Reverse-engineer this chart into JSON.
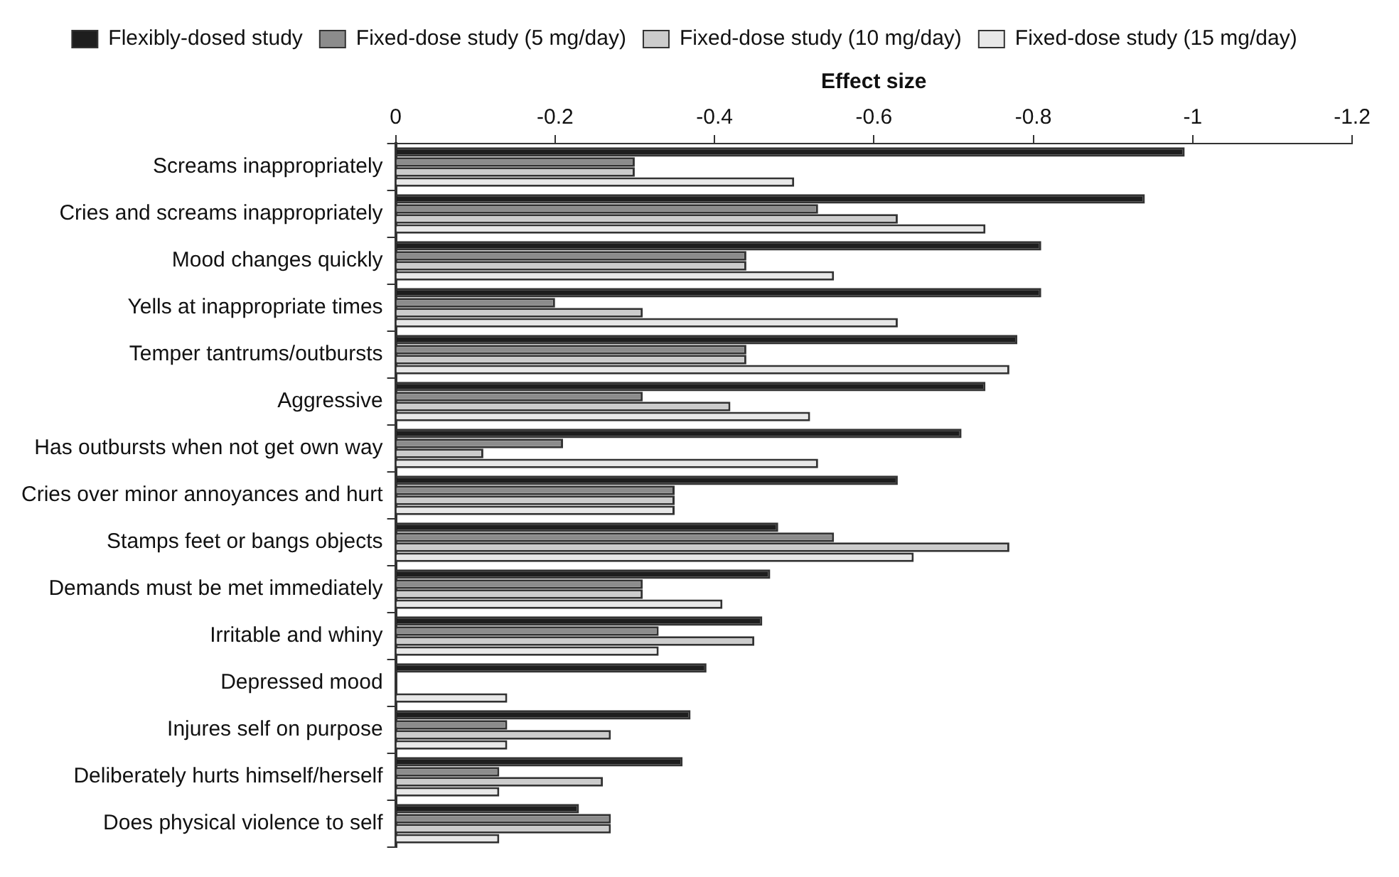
{
  "chart_data": {
    "type": "bar",
    "orientation": "horizontal",
    "xlabel": "Effect size",
    "categories": [
      "Screams inappropriately",
      "Cries and screams inappropriately",
      "Mood changes quickly",
      "Yells at inappropriate times",
      "Temper tantrums/outbursts",
      "Aggressive",
      "Has outbursts when not get own way",
      "Cries over minor annoyances and hurt",
      "Stamps feet or bangs objects",
      "Demands must be met immediately",
      "Irritable and whiny",
      "Depressed mood",
      "Injures self on purpose",
      "Deliberately hurts himself/herself",
      "Does physical violence to self"
    ],
    "series": [
      {
        "name": "Flexibly-dosed study",
        "color": "#1e1e1e",
        "values": [
          -0.99,
          -0.94,
          -0.81,
          -0.81,
          -0.78,
          -0.74,
          -0.71,
          -0.63,
          -0.48,
          -0.47,
          -0.46,
          -0.39,
          -0.37,
          -0.36,
          -0.23
        ]
      },
      {
        "name": "Fixed-dose study (5 mg/day)",
        "color": "#8c8c8c",
        "values": [
          -0.3,
          -0.53,
          -0.44,
          -0.2,
          -0.44,
          -0.31,
          -0.21,
          -0.35,
          -0.55,
          -0.31,
          -0.33,
          null,
          -0.14,
          -0.13,
          -0.27
        ]
      },
      {
        "name": "Fixed-dose study (10 mg/day)",
        "color": "#cccccc",
        "values": [
          -0.3,
          -0.63,
          -0.44,
          -0.31,
          -0.44,
          -0.42,
          -0.11,
          -0.35,
          -0.77,
          -0.31,
          -0.45,
          null,
          -0.27,
          -0.26,
          -0.27
        ]
      },
      {
        "name": "Fixed-dose study (15 mg/day)",
        "color": "#e8e8e8",
        "values": [
          -0.5,
          -0.74,
          -0.55,
          -0.63,
          -0.77,
          -0.52,
          -0.53,
          -0.35,
          -0.65,
          -0.41,
          -0.33,
          -0.14,
          -0.14,
          -0.13,
          -0.13
        ]
      }
    ],
    "xlim": [
      0,
      -1.2
    ],
    "xticks": [
      0,
      -0.2,
      -0.4,
      -0.6,
      -0.8,
      -1,
      -1.2
    ],
    "grid": false,
    "legend": "top"
  }
}
